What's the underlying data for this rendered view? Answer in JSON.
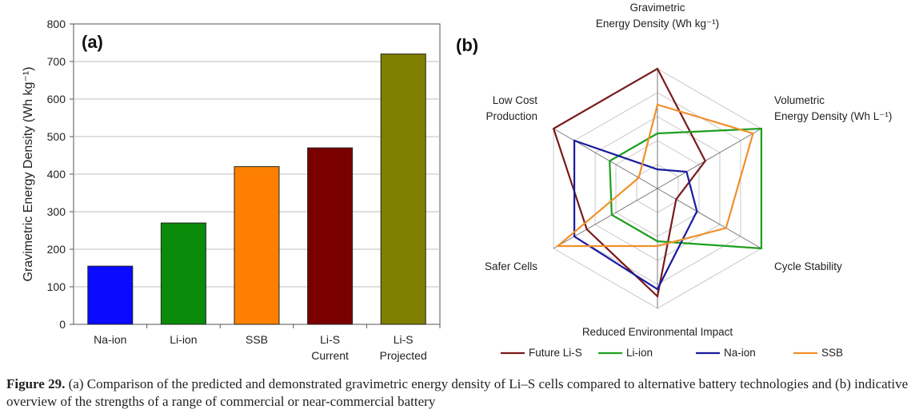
{
  "chart_data": [
    {
      "type": "bar",
      "panel_label": "(a)",
      "categories": [
        "Na-ion",
        "Li-ion",
        "SSB",
        "Li-S|Current",
        "Li-S|Projected"
      ],
      "values": [
        155,
        270,
        420,
        470,
        720
      ],
      "colors": [
        "#0a0aff",
        "#0a8c0a",
        "#ff8000",
        "#7a0000",
        "#7f7f00"
      ],
      "ylabel": "Gravimetric Energy Density (Wh kg⁻¹)",
      "ylim": [
        0,
        800
      ],
      "yticks": [
        0,
        100,
        200,
        300,
        400,
        500,
        600,
        700,
        800
      ],
      "grid": true
    },
    {
      "type": "radar",
      "panel_label": "(b)",
      "axes": [
        "Gravimetric|Energy Density (Wh kg⁻¹)",
        "Volumetric|Energy Density (Wh L⁻¹)",
        "Cycle Stability",
        "Reduced Environmental Impact",
        "Safer Cells",
        "Low Cost|Production"
      ],
      "range": [
        0,
        5
      ],
      "rings": 5,
      "series": [
        {
          "name": "Future Li-S",
          "color": "#7a1a1a",
          "values": [
            5,
            2.3,
            0.9,
            4.5,
            3.4,
            5
          ]
        },
        {
          "name": "Li-ion",
          "color": "#1e9e1e",
          "values": [
            2.3,
            5,
            5,
            2.2,
            2.2,
            2.3
          ]
        },
        {
          "name": "Na-ion",
          "color": "#1a1a9e",
          "values": [
            0.8,
            1.4,
            1.9,
            4.2,
            4.0,
            4.0
          ]
        },
        {
          "name": "SSB",
          "color": "#f0902a",
          "values": [
            3.5,
            4.6,
            3.3,
            2.4,
            4.8,
            0.9
          ]
        }
      ],
      "legend_position": "bottom"
    }
  ],
  "caption": {
    "label": "Figure 29.",
    "text": "(a) Comparison of the predicted and demonstrated gravimetric energy density of Li–S cells compared to alternative battery technologies and (b) indicative overview of the strengths of a range of commercial or near-commercial battery"
  }
}
